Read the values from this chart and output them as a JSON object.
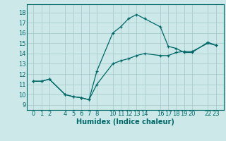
{
  "xlabel": "Humidex (Indice chaleur)",
  "background_color": "#cce8e8",
  "grid_color": "#aacccc",
  "line_color": "#006868",
  "line1_x": [
    0,
    1,
    2,
    4,
    5,
    6,
    7,
    8,
    10,
    11,
    12,
    13,
    14,
    16,
    17,
    18,
    19,
    20,
    22,
    23
  ],
  "line1_y": [
    11.3,
    11.3,
    11.5,
    10.0,
    9.8,
    9.7,
    9.5,
    11.0,
    13.0,
    13.3,
    13.5,
    13.8,
    14.0,
    13.8,
    13.8,
    14.1,
    14.2,
    14.2,
    15.0,
    14.8
  ],
  "line2_x": [
    0,
    1,
    2,
    4,
    5,
    6,
    7,
    8,
    10,
    11,
    12,
    13,
    14,
    16,
    17,
    18,
    19,
    20,
    22,
    23
  ],
  "line2_y": [
    11.3,
    11.3,
    11.5,
    10.0,
    9.8,
    9.7,
    9.5,
    12.3,
    16.0,
    16.6,
    17.4,
    17.8,
    17.4,
    16.6,
    14.7,
    14.5,
    14.1,
    14.1,
    15.1,
    14.8
  ],
  "xticks": [
    0,
    1,
    2,
    4,
    5,
    6,
    7,
    8,
    10,
    11,
    12,
    13,
    14,
    16,
    17,
    18,
    19,
    20,
    22,
    23
  ],
  "yticks": [
    9,
    10,
    11,
    12,
    13,
    14,
    15,
    16,
    17,
    18
  ],
  "xlim": [
    -0.8,
    24.0
  ],
  "ylim": [
    8.5,
    18.8
  ],
  "xlabel_fontsize": 7,
  "tick_fontsize": 6,
  "marker": "+"
}
